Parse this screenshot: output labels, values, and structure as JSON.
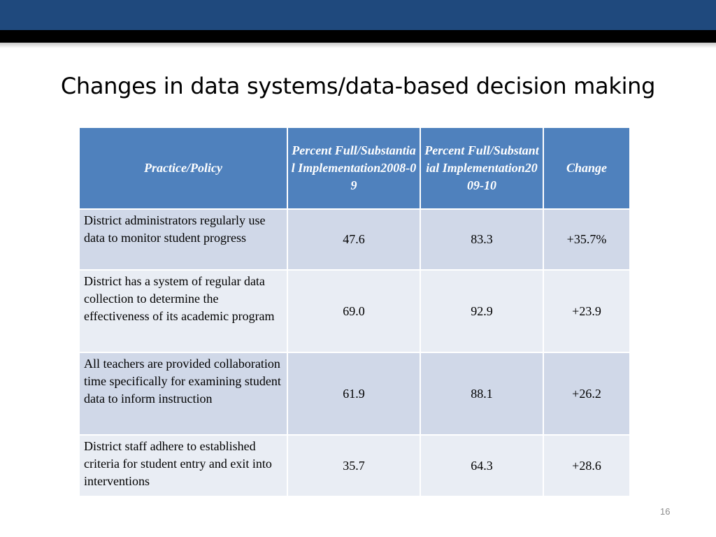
{
  "slide": {
    "title": "Changes in data systems/data-based decision making",
    "number": "16"
  },
  "table": {
    "headers": [
      "Practice/Policy",
      "Percent Full/Substantial Implementation2008-09",
      "Percent Full/Substantial Implementation2009-10",
      "Change"
    ],
    "rows": [
      {
        "practice": "District administrators regularly use data to monitor student progress",
        "y2008": "47.6",
        "y2009": "83.3",
        "change": "+35.7%"
      },
      {
        "practice": "District has a system of regular data collection to determine the effectiveness of its academic program",
        "y2008": "69.0",
        "y2009": "92.9",
        "change": "+23.9"
      },
      {
        "practice": "All teachers are provided collaboration time specifically for examining student data to inform instruction",
        "y2008": "61.9",
        "y2009": "88.1",
        "change": "+26.2"
      },
      {
        "practice": "District staff adhere to established criteria for student entry and exit into interventions",
        "y2008": "35.7",
        "y2009": "64.3",
        "change": "+28.6"
      }
    ]
  },
  "colors": {
    "top_band": "#1f497d",
    "header_fill": "#4f81bd",
    "row_dark": "#d0d8e8",
    "row_light": "#e9edf4"
  }
}
